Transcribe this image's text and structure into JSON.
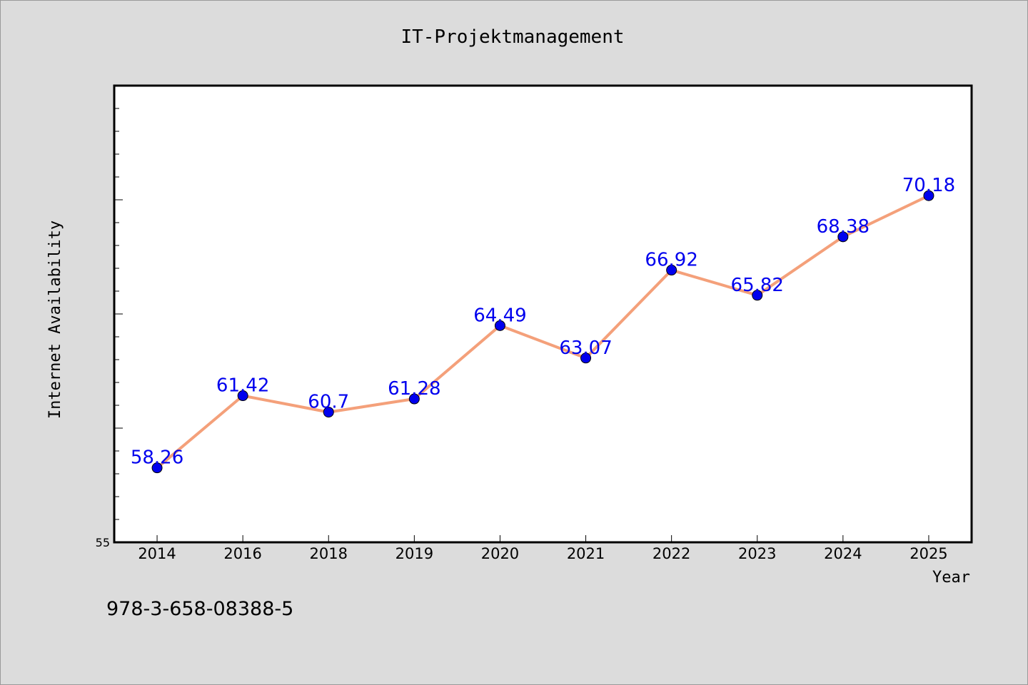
{
  "chart_data": {
    "type": "line",
    "title": "IT-Projektmanagement",
    "xlabel": "Year",
    "ylabel": "Internet Availability",
    "categories": [
      "2014",
      "2016",
      "2018",
      "2019",
      "2020",
      "2021",
      "2022",
      "2023",
      "2024",
      "2025"
    ],
    "series": [
      {
        "values": [
          58.26,
          61.42,
          60.7,
          61.28,
          64.49,
          63.07,
          66.92,
          65.82,
          68.38,
          70.18
        ],
        "labels": [
          "58.26",
          "61.42",
          "60.7",
          "61.28",
          "64.49",
          "63.07",
          "66.92",
          "65.82",
          "68.38",
          "70.18"
        ]
      }
    ],
    "ylim": [
      55,
      75
    ],
    "y_tick_labels": [
      "55"
    ],
    "grid": false,
    "colors": {
      "line": "#f4a07a",
      "marker": "#0000ee",
      "data_label": "#0000ee",
      "plot_background": "#ffffff",
      "page_background": "#dcdcdc"
    }
  },
  "footer": {
    "isbn": "978-3-658-08388-5"
  }
}
